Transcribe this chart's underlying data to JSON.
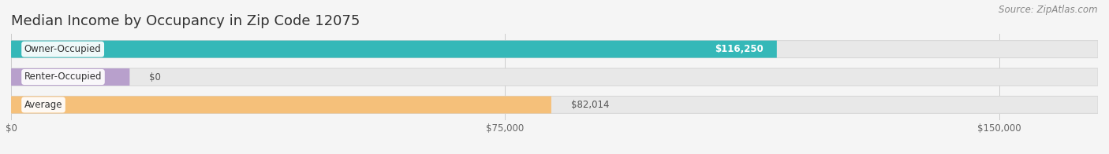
{
  "title": "Median Income by Occupancy in Zip Code 12075",
  "source": "Source: ZipAtlas.com",
  "categories": [
    "Owner-Occupied",
    "Renter-Occupied",
    "Average"
  ],
  "values": [
    116250,
    0,
    82014
  ],
  "bar_colors": [
    "#35b8b8",
    "#b8a0cc",
    "#f5c07a"
  ],
  "value_labels": [
    "$116,250",
    "$0",
    "$82,014"
  ],
  "value_label_colors": [
    "#ffffff",
    "#555555",
    "#555555"
  ],
  "value_inside": [
    true,
    false,
    false
  ],
  "x_ticks": [
    0,
    75000,
    150000
  ],
  "x_tick_labels": [
    "$0",
    "$75,000",
    "$150,000"
  ],
  "xlim": [
    0,
    150000
  ],
  "plot_xlim_max": 165000,
  "background_color": "#f5f5f5",
  "bar_bg_color": "#e8e8e8",
  "bar_row_bg": "#efefef",
  "title_fontsize": 13,
  "source_fontsize": 8.5,
  "label_fontsize": 8.5,
  "tick_fontsize": 8.5
}
